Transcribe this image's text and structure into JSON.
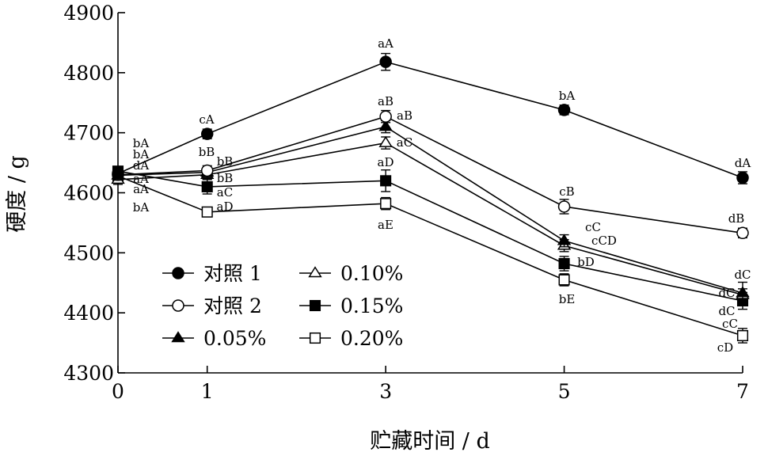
{
  "chart_data": {
    "type": "line",
    "xlabel": "贮藏时间 / d",
    "ylabel": "硬度 / g",
    "x": [
      0,
      1,
      3,
      5,
      7
    ],
    "xticks": [
      0,
      1,
      3,
      5,
      7
    ],
    "xlim": [
      0,
      7
    ],
    "ylim": [
      4300,
      4900
    ],
    "yticks": [
      4300,
      4400,
      4500,
      4600,
      4700,
      4800,
      4900
    ],
    "grid": false,
    "legend_position": "bottom-left",
    "series": [
      {
        "name": "对照 1",
        "marker": "circle-filled",
        "values": [
          4632,
          4698,
          4818,
          4738,
          4625
        ],
        "errors": [
          8,
          8,
          14,
          8,
          10
        ],
        "letters": [
          "bA",
          "cA",
          "aA",
          "bA",
          "dA"
        ]
      },
      {
        "name": "对照 2",
        "marker": "circle-open",
        "values": [
          4630,
          4637,
          4727,
          4577,
          4533
        ],
        "errors": [
          8,
          8,
          10,
          12,
          8
        ],
        "letters": [
          "bA",
          "bB",
          "aB",
          "cB",
          "dB"
        ]
      },
      {
        "name": "0.05%",
        "marker": "triangle-filled",
        "values": [
          4629,
          4634,
          4710,
          4520,
          4433
        ],
        "errors": [
          8,
          8,
          10,
          10,
          18
        ],
        "letters": [
          "dA",
          "bB",
          "aB",
          "cC",
          "dC"
        ]
      },
      {
        "name": "0.10%",
        "marker": "triangle-open",
        "values": [
          4622,
          4630,
          4683,
          4512,
          4430
        ],
        "errors": [
          8,
          8,
          10,
          10,
          10
        ],
        "letters": [
          "aA",
          "bB",
          "aC",
          "cCD",
          "dC"
        ]
      },
      {
        "name": "0.15%",
        "marker": "square-filled",
        "values": [
          4636,
          4610,
          4620,
          4482,
          4420
        ],
        "errors": [
          8,
          12,
          18,
          12,
          14
        ],
        "letters": [
          "aA",
          "aC",
          "aD",
          "bD",
          "dC"
        ]
      },
      {
        "name": "0.20%",
        "marker": "square-open",
        "values": [
          4628,
          4568,
          4582,
          4455,
          4362
        ],
        "errors": [
          8,
          8,
          10,
          10,
          12
        ],
        "letters": [
          "bA",
          "aD",
          "aE",
          "bE",
          "cC"
        ]
      }
    ],
    "extra_letters": [
      {
        "x": 7,
        "text": "cD"
      }
    ]
  }
}
